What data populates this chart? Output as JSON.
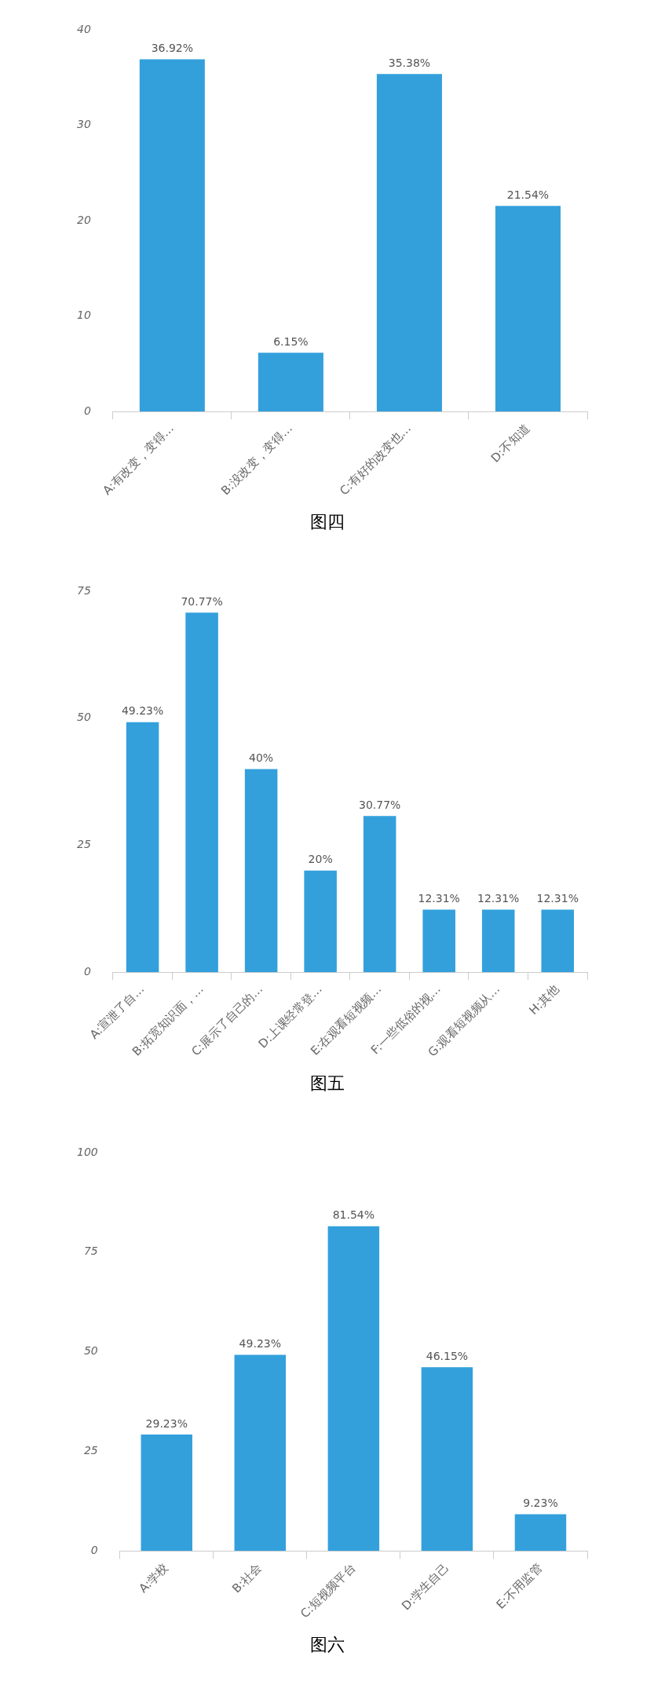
{
  "chart_data": [
    {
      "type": "bar",
      "categories": [
        "A:有改变，变得…",
        "B:没改变，变得…",
        "C:有好的改变也…",
        "D:不知道"
      ],
      "values": [
        36.92,
        6.15,
        35.38,
        21.54
      ],
      "value_labels": [
        "36.92%",
        "6.15%",
        "35.38%",
        "21.54%"
      ],
      "color": "#33a0dc",
      "ylim": [
        0,
        40
      ],
      "yticks": [
        0,
        10,
        20,
        30,
        40
      ],
      "grid": false,
      "legend": false,
      "annotations": [
        "图四"
      ]
    },
    {
      "type": "bar",
      "categories": [
        "A:宣泄了自…",
        "B:拓宽知识面，…",
        "C:展示了自己的…",
        "D:上课经常登…",
        "E:在观看短视频…",
        "F:一些低俗的视…",
        "G:观看短视频从…",
        "H:其他"
      ],
      "values": [
        49.23,
        70.77,
        40,
        20,
        30.77,
        12.31,
        12.31,
        12.31
      ],
      "value_labels": [
        "49.23%",
        "70.77%",
        "40%",
        "20%",
        "30.77%",
        "12.31%",
        "12.31%",
        "12.31%"
      ],
      "color": "#33a0dc",
      "ylim": [
        0,
        75
      ],
      "yticks": [
        0,
        25,
        50,
        75
      ],
      "grid": false,
      "legend": false,
      "annotations": [
        "图五"
      ]
    },
    {
      "type": "bar",
      "categories": [
        "A:学校",
        "B:社会",
        "C:短视频平台",
        "D:学生自己",
        "E:不用监管"
      ],
      "values": [
        29.23,
        49.23,
        81.54,
        46.15,
        9.23
      ],
      "value_labels": [
        "29.23%",
        "49.23%",
        "81.54%",
        "46.15%",
        "9.23%"
      ],
      "color": "#33a0dc",
      "ylim": [
        0,
        100
      ],
      "yticks": [
        0,
        25,
        50,
        75,
        100
      ],
      "grid": false,
      "legend": false,
      "annotations": [
        "图六"
      ]
    }
  ]
}
